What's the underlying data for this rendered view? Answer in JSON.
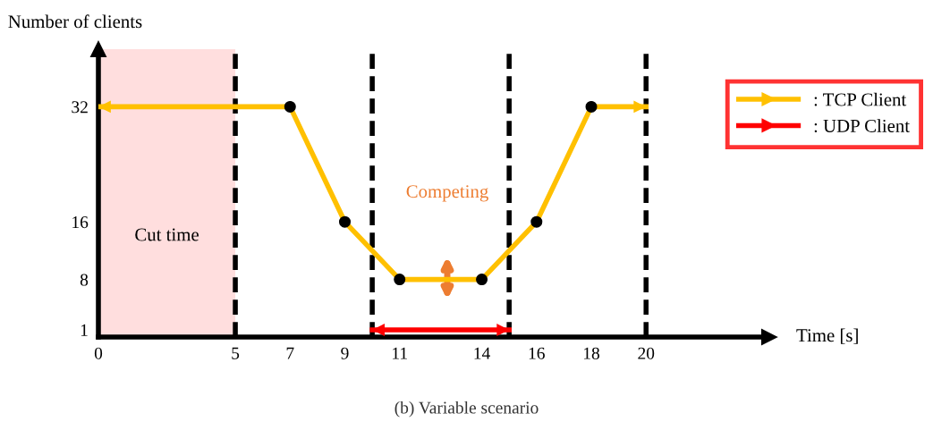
{
  "chart_data": {
    "type": "line",
    "xlabel": "Time [s]",
    "ylabel": "Number of clients",
    "x": [
      0,
      7,
      9,
      11,
      14,
      16,
      18,
      20
    ],
    "series": [
      {
        "name": ": TCP Client",
        "color": "#ffc000",
        "values": [
          32,
          32,
          16,
          8,
          8,
          16,
          32,
          32
        ]
      },
      {
        "name": ": UDP Client",
        "color": "#ff0000",
        "x": [
          10,
          15
        ],
        "values": [
          1,
          1
        ]
      },
      {
        "type": "scatter",
        "color": "#000000",
        "x": [
          7,
          9,
          11,
          14,
          16,
          18
        ],
        "values": [
          32,
          16,
          8,
          8,
          16,
          32
        ]
      }
    ],
    "xlim": [
      0,
      24.5
    ],
    "ylim": [
      0,
      40
    ],
    "xticks": [
      0,
      5,
      7,
      9,
      11,
      14,
      16,
      18,
      20
    ],
    "yticks": [
      1,
      8,
      16,
      32
    ],
    "ref_lines": [
      {
        "axis": "x",
        "value": 5,
        "color": "#000000",
        "line_style": "dashed"
      },
      {
        "axis": "x",
        "value": 10,
        "color": "#000000",
        "line_style": "dashed"
      },
      {
        "axis": "x",
        "value": 15,
        "color": "#000000",
        "line_style": "dashed"
      },
      {
        "axis": "x",
        "value": 20,
        "color": "#000000",
        "line_style": "dashed"
      }
    ],
    "bands": [
      {
        "axis": "x",
        "from": 0,
        "to": 5,
        "label": "Cut time",
        "color": "#ffdede"
      }
    ],
    "annotations": [
      "Competing",
      "(b) Variable scenario"
    ],
    "legend": "top right",
    "grid": false,
    "line_style": "solid"
  }
}
